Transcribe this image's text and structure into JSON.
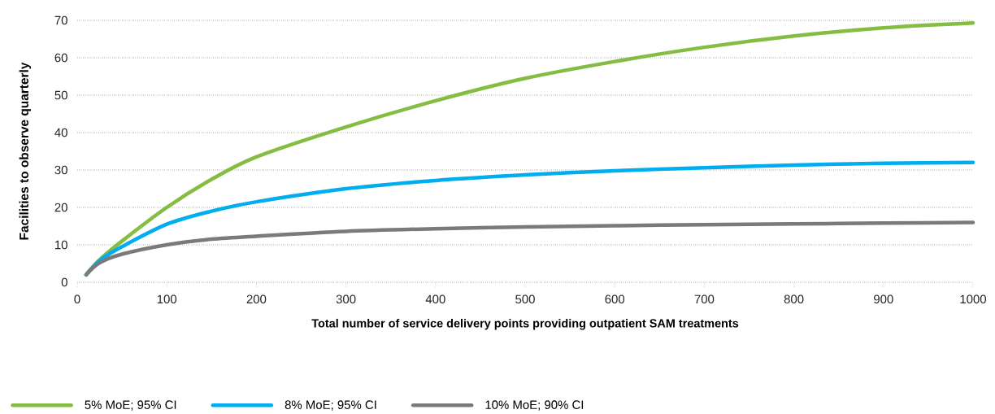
{
  "chart_data": {
    "type": "line",
    "xlabel": "Total number of service delivery points providing outpatient SAM treatments",
    "ylabel": "Facilities to observe quarterly",
    "x": [
      10,
      25,
      50,
      100,
      150,
      200,
      300,
      400,
      500,
      600,
      700,
      800,
      900,
      1000
    ],
    "series": [
      {
        "name": "5% MoE; 95% CI",
        "color": "#84bd41",
        "values": [
          2,
          6,
          11,
          20,
          27.5,
          33.5,
          41.5,
          48.5,
          54.5,
          59,
          62.8,
          65.8,
          68,
          69.3
        ]
      },
      {
        "name": "8% MoE; 95% CI",
        "color": "#00adef",
        "values": [
          2,
          5.8,
          9.5,
          15.5,
          19,
          21.5,
          25,
          27.2,
          28.7,
          29.8,
          30.6,
          31.3,
          31.8,
          32
        ]
      },
      {
        "name": "10% MoE; 90% CI",
        "color": "#7a7a7a",
        "values": [
          2,
          5.2,
          7.5,
          10,
          11.5,
          12.3,
          13.6,
          14.3,
          14.8,
          15.1,
          15.4,
          15.6,
          15.8,
          16
        ]
      }
    ],
    "xlim": [
      0,
      1000
    ],
    "xticks": [
      0,
      100,
      200,
      300,
      400,
      500,
      600,
      700,
      800,
      900,
      1000
    ],
    "ylim": [
      0,
      70
    ],
    "yticks": [
      0,
      10,
      20,
      30,
      40,
      50,
      60,
      70
    ],
    "grid": "y",
    "legend": "bottom",
    "marker": "none",
    "line_style": "solid"
  }
}
